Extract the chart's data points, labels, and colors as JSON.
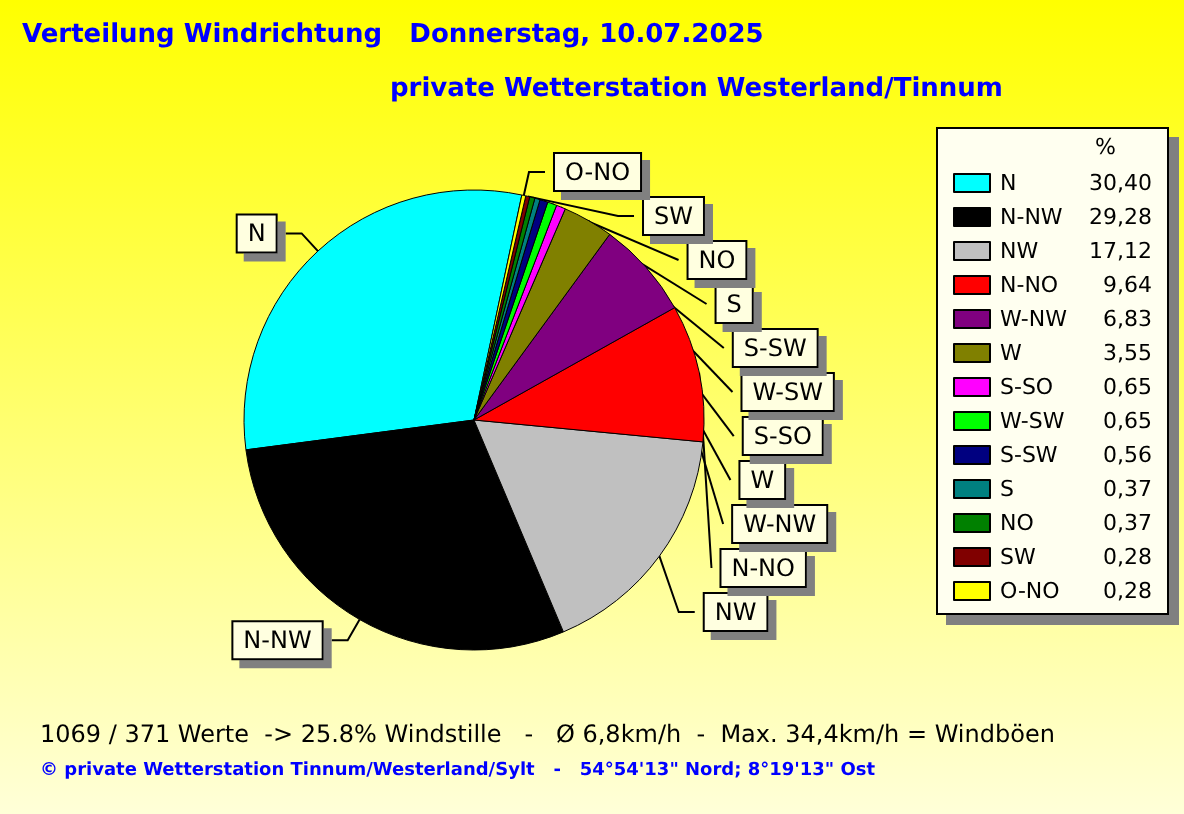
{
  "chart_data": {
    "type": "pie",
    "title": "Verteilung Windrichtung   Donnerstag, 10.07.2025",
    "subtitle": "private Wetterstation Westerland/Tinnum",
    "legend_title": "%",
    "legend": "right",
    "categories": [
      "N",
      "N-NW",
      "NW",
      "N-NO",
      "W-NW",
      "W",
      "S-SO",
      "W-SW",
      "S-SW",
      "S",
      "NO",
      "SW",
      "O-NO"
    ],
    "values": [
      30.4,
      29.28,
      17.12,
      9.64,
      6.83,
      3.55,
      0.65,
      0.65,
      0.56,
      0.37,
      0.37,
      0.28,
      0.28
    ],
    "value_labels": [
      "30,40",
      "29,28",
      "17,12",
      "9,64",
      "6,83",
      "3,55",
      "0,65",
      "0,65",
      "0,56",
      "0,37",
      "0,37",
      "0,28",
      "0,28"
    ],
    "colors": [
      "#00ffff",
      "#000000",
      "#c0c0c0",
      "#ff0000",
      "#800080",
      "#808000",
      "#ff00ff",
      "#00ff00",
      "#000080",
      "#008080",
      "#008000",
      "#800000",
      "#ffff00"
    ],
    "annotations": [
      "1069 / 371 Werte  -> 25.8% Windstille   -   Ø 6,8km/h  -  Max. 34,4km/h = Windböen",
      "© private Wetterstation Tinnum/Westerland/Sylt   -   54°54'13\" Nord; 8°19'13\" Ost"
    ]
  }
}
